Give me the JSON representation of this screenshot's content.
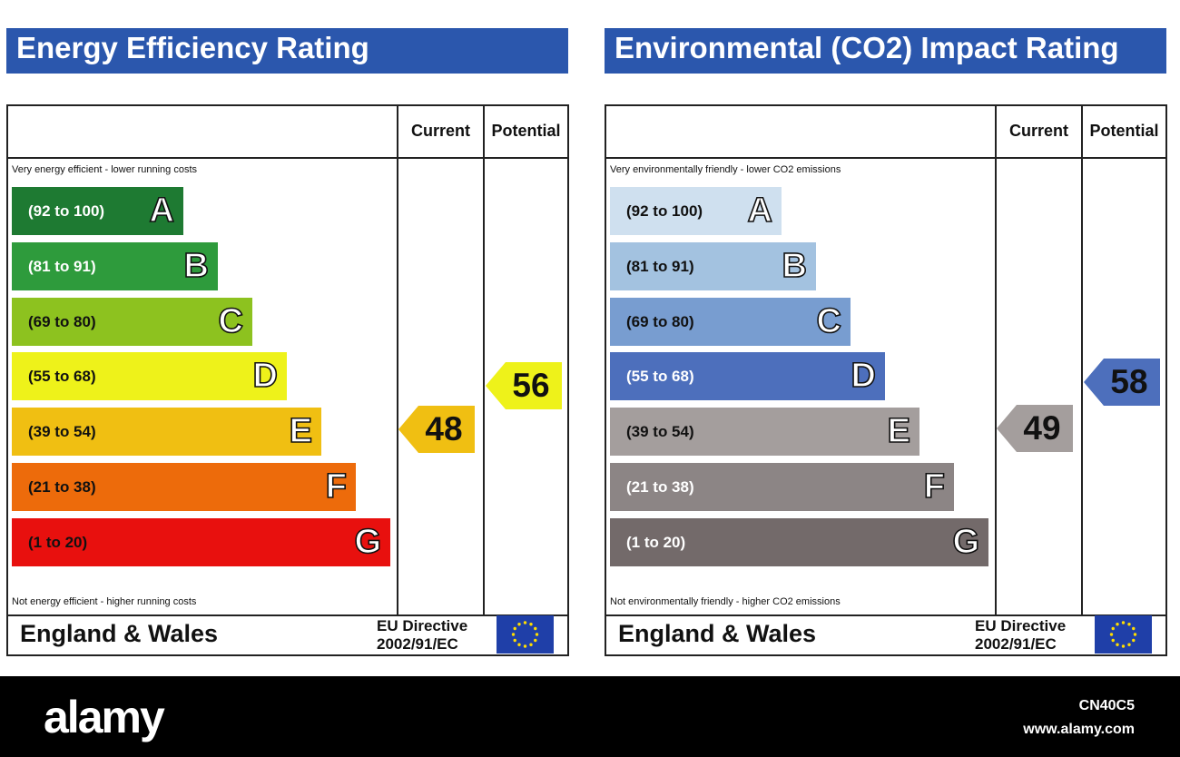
{
  "chart_data": [
    {
      "type": "bar",
      "title": "Energy Efficiency Rating",
      "columns": [
        "Current",
        "Potential"
      ],
      "top_note": "Very energy efficient - lower running costs",
      "bottom_note": "Not energy efficient - higher running costs",
      "bands": [
        {
          "range": "(92 to 100)",
          "letter": "A",
          "min": 92,
          "max": 100,
          "color": "#1e7a32",
          "range_color": "#ffffff"
        },
        {
          "range": "(81 to 91)",
          "letter": "B",
          "min": 81,
          "max": 91,
          "color": "#2e9b3c",
          "range_color": "#ffffff"
        },
        {
          "range": "(69 to 80)",
          "letter": "C",
          "min": 69,
          "max": 80,
          "color": "#8dc21f",
          "range_color": "#111111"
        },
        {
          "range": "(55 to 68)",
          "letter": "D",
          "min": 55,
          "max": 68,
          "color": "#eef21a",
          "range_color": "#111111"
        },
        {
          "range": "(39 to 54)",
          "letter": "E",
          "min": 39,
          "max": 54,
          "color": "#f0bf12",
          "range_color": "#111111"
        },
        {
          "range": "(21 to 38)",
          "letter": "F",
          "min": 21,
          "max": 38,
          "color": "#ed6b0b",
          "range_color": "#111111"
        },
        {
          "range": "(1 to 20)",
          "letter": "G",
          "min": 1,
          "max": 20,
          "color": "#e8100e",
          "range_color": "#111111"
        }
      ],
      "current": {
        "value": 48,
        "band": "E",
        "color": "#f0bf12"
      },
      "potential": {
        "value": 56,
        "band": "D",
        "color": "#eef21a"
      },
      "footer": {
        "country": "England & Wales",
        "directive_line1": "EU Directive",
        "directive_line2": "2002/91/EC"
      }
    },
    {
      "type": "bar",
      "title": "Environmental (CO2) Impact Rating",
      "columns": [
        "Current",
        "Potential"
      ],
      "top_note": "Very environmentally friendly - lower CO2 emissions",
      "bottom_note": "Not environmentally friendly - higher CO2 emissions",
      "bands": [
        {
          "range": "(92 to 100)",
          "letter": "A",
          "min": 92,
          "max": 100,
          "color": "#cfe0ef",
          "range_color": "#111111"
        },
        {
          "range": "(81 to 91)",
          "letter": "B",
          "min": 81,
          "max": 91,
          "color": "#a3c2e0",
          "range_color": "#111111"
        },
        {
          "range": "(69 to 80)",
          "letter": "C",
          "min": 69,
          "max": 80,
          "color": "#789dd0",
          "range_color": "#111111"
        },
        {
          "range": "(55 to 68)",
          "letter": "D",
          "min": 55,
          "max": 68,
          "color": "#4d6fbc",
          "range_color": "#ffffff"
        },
        {
          "range": "(39 to 54)",
          "letter": "E",
          "min": 39,
          "max": 54,
          "color": "#a49e9d",
          "range_color": "#111111"
        },
        {
          "range": "(21 to 38)",
          "letter": "F",
          "min": 21,
          "max": 38,
          "color": "#8c8585",
          "range_color": "#ffffff"
        },
        {
          "range": "(1 to 20)",
          "letter": "G",
          "min": 1,
          "max": 20,
          "color": "#736a6a",
          "range_color": "#ffffff"
        }
      ],
      "current": {
        "value": 49,
        "band": "E",
        "color": "#a49e9d"
      },
      "potential": {
        "value": 58,
        "band": "D",
        "color": "#4d6fbc"
      },
      "footer": {
        "country": "England & Wales",
        "directive_line1": "EU Directive",
        "directive_line2": "2002/91/EC"
      }
    }
  ],
  "watermark": {
    "brand": "alamy",
    "image_id": "CN40C5",
    "site": "www.alamy.com"
  },
  "colors": {
    "title_bar": "#2b57ad",
    "eu_flag": "#1f3fa8",
    "eu_stars": "#ffdd00"
  }
}
